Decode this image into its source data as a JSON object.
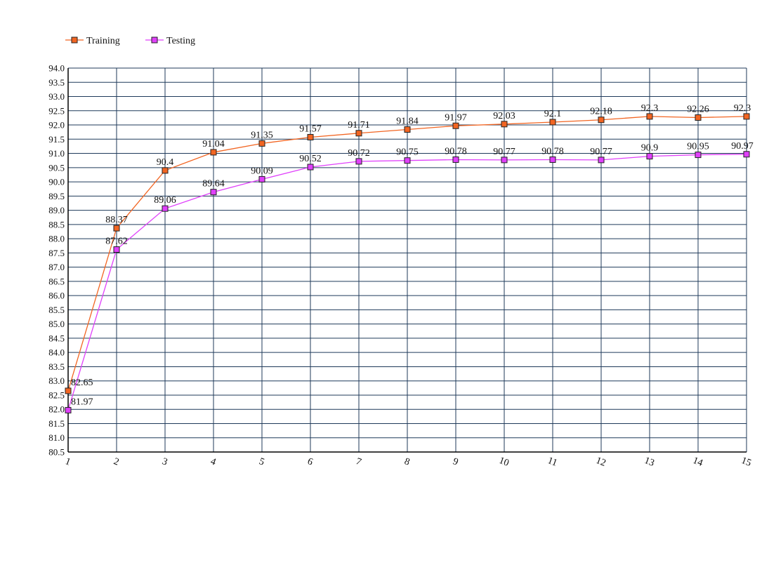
{
  "chart_data": {
    "type": "line",
    "title": "",
    "xlabel": "",
    "ylabel": "",
    "categories": [
      "1",
      "2",
      "3",
      "4",
      "5",
      "6",
      "7",
      "8",
      "9",
      "10",
      "11",
      "12",
      "13",
      "14",
      "15"
    ],
    "ylim": [
      80.5,
      94.0
    ],
    "ytick_step": 0.5,
    "grid": true,
    "legend_placement": "top-left",
    "series": [
      {
        "name": "Training",
        "color": "#f26522",
        "marker": "square",
        "values": [
          82.65,
          88.37,
          90.4,
          91.04,
          91.35,
          91.57,
          91.71,
          91.84,
          91.97,
          92.03,
          92.1,
          92.18,
          92.3,
          92.26,
          92.3
        ]
      },
      {
        "name": "Testing",
        "color": "#e040fb",
        "marker": "square",
        "values": [
          81.97,
          87.62,
          89.06,
          89.64,
          90.09,
          90.52,
          90.72,
          90.75,
          90.78,
          90.77,
          90.78,
          90.77,
          90.9,
          90.95,
          90.97
        ]
      }
    ],
    "axis_color": "#000000",
    "grid_color": "#1f3a5a"
  }
}
